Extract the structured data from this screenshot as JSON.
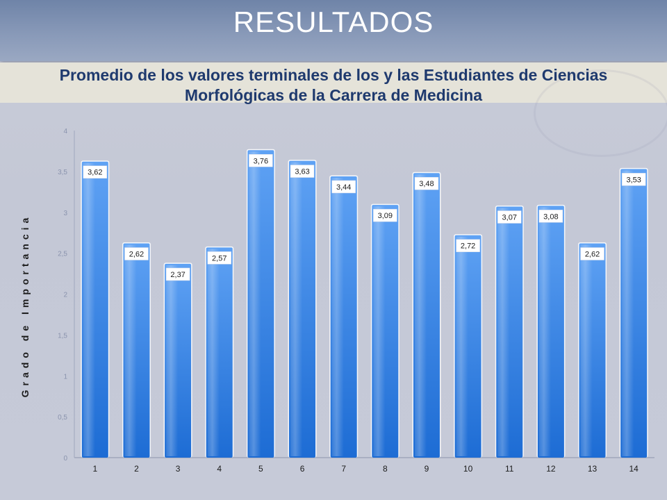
{
  "header": {
    "title": "RESULTADOS"
  },
  "chart_data": {
    "type": "bar",
    "title": "Promedio de los valores terminales de los y las Estudiantes de Ciencias Morfológicas de la Carrera de Medicina",
    "title_lines": [
      "Promedio de los valores terminales de los y las Estudiantes de Ciencias",
      "Morfológicas de la Carrera de Medicina"
    ],
    "xlabel": "",
    "ylabel": "Grado de Importancia",
    "categories": [
      "1",
      "2",
      "3",
      "4",
      "5",
      "6",
      "7",
      "8",
      "9",
      "10",
      "11",
      "12",
      "13",
      "14"
    ],
    "values": [
      3.62,
      2.62,
      2.37,
      2.57,
      3.76,
      3.63,
      3.44,
      3.09,
      3.48,
      2.72,
      3.07,
      3.08,
      2.62,
      3.53
    ],
    "data_labels": [
      "3,62",
      "2,62",
      "2,37",
      "2,57",
      "3,76",
      "3,63",
      "3,44",
      "3,09",
      "3,48",
      "2,72",
      "3,07",
      "3,08",
      "2,62",
      "3,53"
    ],
    "yticks": [
      "0",
      "0,5",
      "1",
      "1,5",
      "2",
      "2,5",
      "3",
      "3,5",
      "4"
    ],
    "ylim": [
      0,
      4
    ],
    "grid": false,
    "legend": "none",
    "colors": {
      "bar_top": "#5c9ef2",
      "bar_bottom": "#1f6fd6",
      "bar_edge": "#ffffff",
      "tick_text": "#8a93ad"
    }
  }
}
